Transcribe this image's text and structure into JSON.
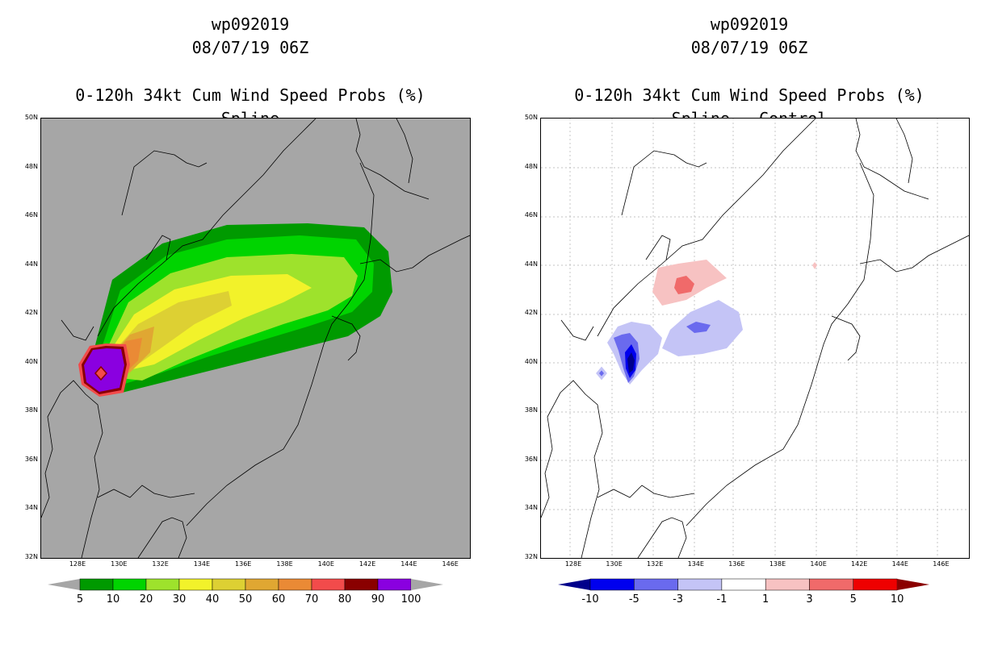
{
  "left_panel": {
    "title_line1": "wp092019",
    "title_line2": "08/07/19 06Z",
    "title_line3": "0-120h 34kt Cum Wind Speed Probs (%)",
    "title_line4": "Spline",
    "background_color": "#a6a6a6",
    "colorbar": {
      "labels": [
        "5",
        "10",
        "20",
        "30",
        "40",
        "50",
        "60",
        "70",
        "80",
        "90",
        "100"
      ],
      "colors": [
        "#009a00",
        "#00d400",
        "#9ee22c",
        "#f2f22a",
        "#ddd033",
        "#e0a732",
        "#ea8a35",
        "#f24b4b",
        "#8a0000",
        "#8a00e0"
      ]
    }
  },
  "right_panel": {
    "title_line1": "wp092019",
    "title_line2": "08/07/19 06Z",
    "title_line3": "0-120h 34kt Cum Wind Speed Probs (%)",
    "title_line4": "Spline - Control",
    "background_color": "#ffffff",
    "colorbar": {
      "labels": [
        "-10",
        "-5",
        "-3",
        "-1",
        "1",
        "3",
        "5",
        "10"
      ],
      "colors": [
        "#00008b",
        "#0000ee",
        "#6a6aee",
        "#c4c4f6",
        "#ffffff",
        "#f7c2c2",
        "#f06a6a",
        "#ee0000",
        "#8b0000"
      ]
    }
  },
  "axes": {
    "lat_labels": [
      "50N",
      "48N",
      "46N",
      "44N",
      "42N",
      "40N",
      "38N",
      "36N",
      "34N",
      "32N"
    ],
    "lon_labels": [
      "128E",
      "130E",
      "132E",
      "134E",
      "136E",
      "138E",
      "140E",
      "142E",
      "144E",
      "146E"
    ]
  }
}
